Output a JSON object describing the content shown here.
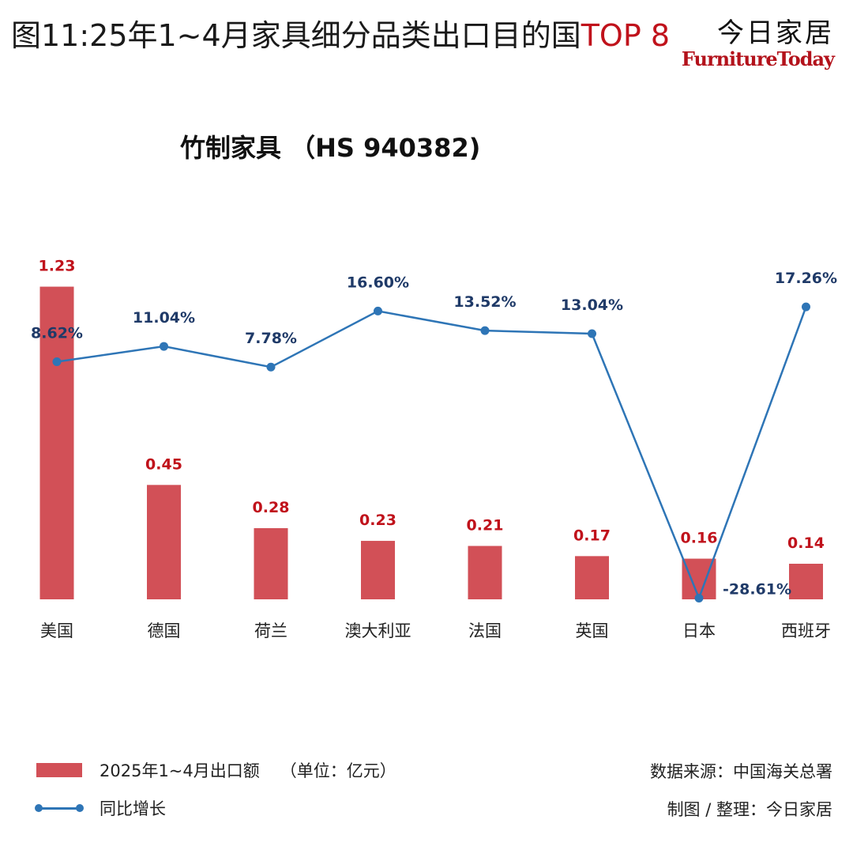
{
  "header": {
    "title_main": "图11:25年1~4月家具细分品类出口目的国",
    "title_accent": "TOP 8",
    "brand_cn": "今日家居",
    "brand_en": "FurnitureToday"
  },
  "colors": {
    "bar": "#d25057",
    "line": "#2e75b6",
    "bar_label": "#c0121b",
    "line_label": "#1f3a68",
    "accent": "#c0121b"
  },
  "chart_data": {
    "type": "bar",
    "title": "竹制家具 （HS 940382)",
    "categories": [
      "美国",
      "德国",
      "荷兰",
      "澳大利亚",
      "法国",
      "英国",
      "日本",
      "西班牙"
    ],
    "series": [
      {
        "name": "2025年1~4月出口额",
        "type": "bar",
        "values": [
          1.23,
          0.45,
          0.28,
          0.23,
          0.21,
          0.17,
          0.16,
          0.14
        ],
        "labels": [
          "1.23",
          "0.45",
          "0.28",
          "0.23",
          "0.21",
          "0.17",
          "0.16",
          "0.14"
        ]
      },
      {
        "name": "同比增长",
        "type": "line",
        "values": [
          8.62,
          11.04,
          7.78,
          16.6,
          13.52,
          13.04,
          -28.61,
          17.26
        ],
        "labels": [
          "8.62%",
          "11.04%",
          "7.78%",
          "16.60%",
          "13.52%",
          "13.04%",
          "-28.61%",
          "17.26%"
        ]
      }
    ],
    "legend": [
      "2025年1~4月出口额",
      "同比增长"
    ],
    "legend_note": "（单位：亿元）",
    "legend_position": "bottom-left"
  },
  "footer": {
    "source": "数据来源：中国海关总署",
    "credit": "制图 / 整理：今日家居"
  }
}
